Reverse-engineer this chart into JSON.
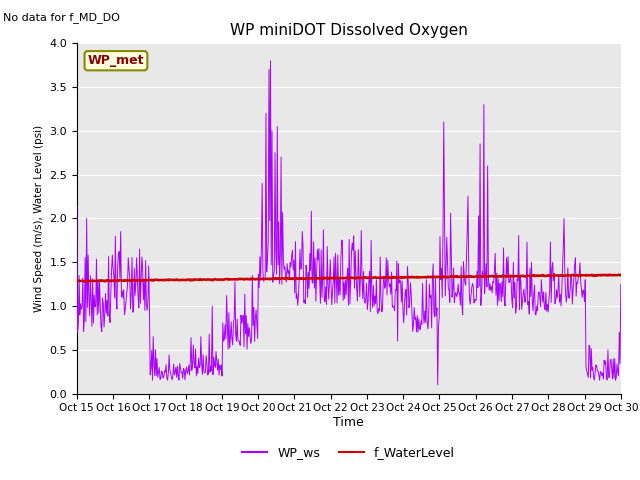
{
  "title": "WP miniDOT Dissolved Oxygen",
  "top_left_text": "No data for f_MD_DO",
  "ylabel": "Wind Speed (m/s), Water Level (psi)",
  "xlabel": "Time",
  "ylim": [
    0.0,
    4.0
  ],
  "yticks": [
    0.0,
    0.5,
    1.0,
    1.5,
    2.0,
    2.5,
    3.0,
    3.5,
    4.0
  ],
  "x_tick_labels": [
    "Oct 15",
    "Oct 16",
    "Oct 17",
    "Oct 18",
    "Oct 19",
    "Oct 20",
    "Oct 21",
    "Oct 22",
    "Oct 23",
    "Oct 24",
    "Oct 25",
    "Oct 26",
    "Oct 27",
    "Oct 28",
    "Oct 29",
    "Oct 30"
  ],
  "wp_ws_color": "#AA00FF",
  "f_water_level_color": "#CC0000",
  "wp_met_label": "WP_met",
  "legend_ws": "WP_ws",
  "legend_wl": "f_WaterLevel",
  "background_color": "#E8E8E8",
  "title_fontsize": 11,
  "axis_fontsize": 8,
  "ylabel_fontsize": 8,
  "seed": 42
}
